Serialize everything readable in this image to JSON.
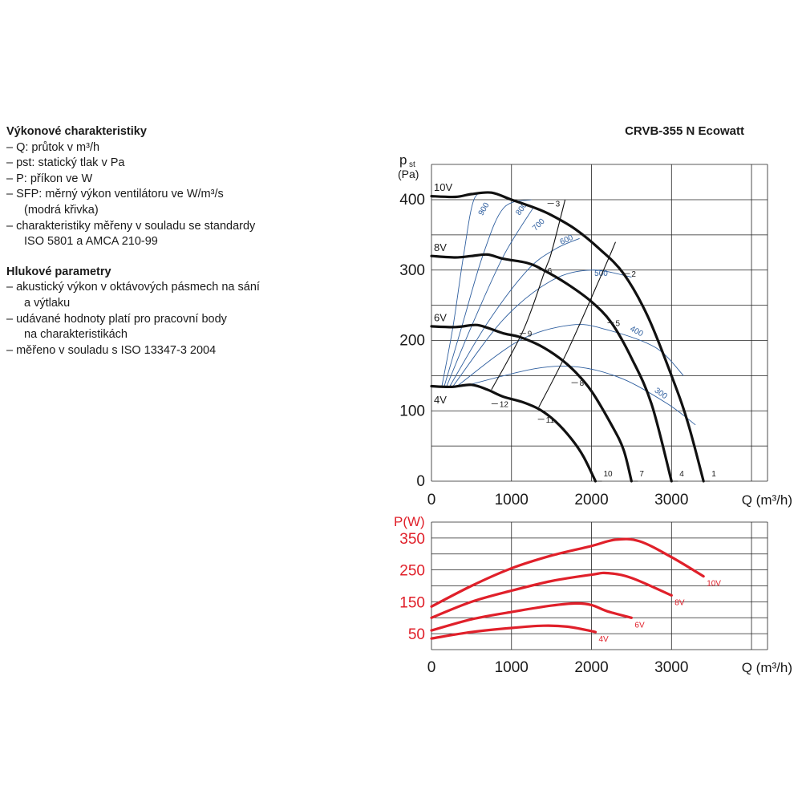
{
  "legend": {
    "performance_title": "Výkonové charakteristiky",
    "performance_items": [
      "– Q: průtok v m³/h",
      "– pst: statický tlak v Pa",
      "– P: příkon ve W",
      "– SFP: měrný výkon ventilátoru ve W/m³/s",
      "(modrá křivka)",
      "– charakteristiky měřeny v souladu se standardy",
      "ISO 5801 a AMCA 210-99"
    ],
    "noise_title": "Hlukové parametry",
    "noise_items": [
      "– akustický výkon v oktávových pásmech na sání",
      "a výtlaku",
      "– udávané hodnoty platí pro pracovní body",
      "na charakteristikách",
      "– měřeno v souladu s ISO 13347-3 2004"
    ]
  },
  "chart_data": [
    {
      "type": "line",
      "title": "CRVB-355 N Ecowatt",
      "xlabel": "Q (m³/h)",
      "ylabel_main": "p",
      "ylabel_sub": "st",
      "ylabel_unit": "(Pa)",
      "xlim": [
        0,
        4200
      ],
      "ylim": [
        0,
        400
      ],
      "xticks": [
        0,
        1000,
        2000,
        3000
      ],
      "yticks": [
        0,
        100,
        200,
        300,
        400
      ],
      "grid": true,
      "colors": {
        "fan": "#111111",
        "sfp": "#2f5f9f",
        "system": "#111111"
      },
      "series": [
        {
          "name": "10V",
          "points": [
            [
              0,
              405
            ],
            [
              300,
              404
            ],
            [
              500,
              408
            ],
            [
              750,
              410
            ],
            [
              1000,
              400
            ],
            [
              1300,
              388
            ],
            [
              1500,
              378
            ],
            [
              1800,
              358
            ],
            [
              2100,
              330
            ],
            [
              2400,
              295
            ],
            [
              2700,
              235
            ],
            [
              3000,
              150
            ],
            [
              3200,
              85
            ],
            [
              3400,
              0
            ]
          ]
        },
        {
          "name": "8V",
          "points": [
            [
              0,
              320
            ],
            [
              300,
              318
            ],
            [
              500,
              320
            ],
            [
              700,
              322
            ],
            [
              900,
              316
            ],
            [
              1200,
              310
            ],
            [
              1400,
              300
            ],
            [
              1700,
              280
            ],
            [
              2000,
              255
            ],
            [
              2250,
              225
            ],
            [
              2500,
              175
            ],
            [
              2750,
              110
            ],
            [
              3000,
              0
            ]
          ]
        },
        {
          "name": "6V",
          "points": [
            [
              0,
              220
            ],
            [
              300,
              219
            ],
            [
              550,
              222
            ],
            [
              700,
              218
            ],
            [
              900,
              210
            ],
            [
              1100,
              205
            ],
            [
              1350,
              193
            ],
            [
              1600,
              175
            ],
            [
              1800,
              155
            ],
            [
              2000,
              128
            ],
            [
              2250,
              80
            ],
            [
              2400,
              45
            ],
            [
              2500,
              0
            ]
          ]
        },
        {
          "name": "4V",
          "points": [
            [
              0,
              135
            ],
            [
              250,
              134
            ],
            [
              500,
              137
            ],
            [
              700,
              130
            ],
            [
              900,
              120
            ],
            [
              1150,
              112
            ],
            [
              1350,
              102
            ],
            [
              1550,
              85
            ],
            [
              1750,
              60
            ],
            [
              1900,
              35
            ],
            [
              2050,
              0
            ]
          ]
        }
      ],
      "sfp_curves": [
        {
          "label": "900",
          "points": [
            [
              130,
              135
            ],
            [
              270,
              220
            ],
            [
              400,
              320
            ],
            [
              530,
              400
            ],
            [
              700,
              410
            ]
          ]
        },
        {
          "label": "800",
          "points": [
            [
              160,
              135
            ],
            [
              380,
              220
            ],
            [
              640,
              320
            ],
            [
              900,
              388
            ],
            [
              1250,
              400
            ]
          ]
        },
        {
          "label": "700",
          "points": [
            [
              190,
              135
            ],
            [
              500,
              220
            ],
            [
              900,
              320
            ],
            [
              1280,
              390
            ]
          ]
        },
        {
          "label": "600",
          "points": [
            [
              230,
              135
            ],
            [
              700,
              225
            ],
            [
              1200,
              300
            ],
            [
              1550,
              330
            ],
            [
              1850,
              345
            ]
          ]
        },
        {
          "label": "500",
          "points": [
            [
              270,
              135
            ],
            [
              900,
              230
            ],
            [
              1500,
              285
            ],
            [
              2000,
              300
            ],
            [
              2500,
              290
            ]
          ]
        },
        {
          "label": "400",
          "points": [
            [
              320,
              135
            ],
            [
              1100,
              200
            ],
            [
              1750,
              222
            ],
            [
              2200,
              215
            ],
            [
              2800,
              190
            ],
            [
              3150,
              150
            ]
          ]
        },
        {
          "label": "300",
          "points": [
            [
              400,
              135
            ],
            [
              1300,
              160
            ],
            [
              1850,
              162
            ],
            [
              2400,
              145
            ],
            [
              2950,
              110
            ],
            [
              3300,
              80
            ]
          ]
        }
      ],
      "system_curves": [
        {
          "points": [
            [
              750,
              130
            ],
            [
              1150,
              215
            ],
            [
              1420,
              300
            ],
            [
              1500,
              325
            ],
            [
              1670,
              400
            ]
          ]
        },
        {
          "points": [
            [
              1340,
              105
            ],
            [
              1700,
              185
            ],
            [
              2150,
              300
            ],
            [
              2300,
              340
            ]
          ]
        }
      ],
      "sfp_label_positions": [
        {
          "label": "900",
          "x": 680,
          "y": 385,
          "angle": -60
        },
        {
          "label": "800",
          "x": 1150,
          "y": 385,
          "angle": -55
        },
        {
          "label": "700",
          "x": 1360,
          "y": 362,
          "angle": -45
        },
        {
          "label": "600",
          "x": 1700,
          "y": 340,
          "angle": -25
        },
        {
          "label": "500",
          "x": 2120,
          "y": 292,
          "angle": 0
        },
        {
          "label": "400",
          "x": 2550,
          "y": 210,
          "angle": 28
        },
        {
          "label": "300",
          "x": 2850,
          "y": 122,
          "angle": 35
        }
      ],
      "points": [
        {
          "label": "1",
          "x": 3400,
          "y": 0
        },
        {
          "label": "2",
          "x": 2400,
          "y": 295
        },
        {
          "label": "3",
          "x": 1450,
          "y": 395
        },
        {
          "label": "4",
          "x": 3000,
          "y": 0
        },
        {
          "label": "5",
          "x": 2200,
          "y": 225
        },
        {
          "label": "6",
          "x": 1350,
          "y": 300
        },
        {
          "label": "7",
          "x": 2500,
          "y": 0
        },
        {
          "label": "8",
          "x": 1750,
          "y": 140
        },
        {
          "label": "9",
          "x": 1100,
          "y": 210
        },
        {
          "label": "10",
          "x": 2050,
          "y": 0
        },
        {
          "label": "11",
          "x": 1330,
          "y": 88
        },
        {
          "label": "12",
          "x": 750,
          "y": 110
        }
      ],
      "series_labels": [
        {
          "label": "10V",
          "x": 0,
          "y": 418
        },
        {
          "label": "8V",
          "x": 0,
          "y": 333
        },
        {
          "label": "6V",
          "x": 0,
          "y": 233
        },
        {
          "label": "4V",
          "x": 0,
          "y": 116
        }
      ]
    },
    {
      "type": "line",
      "xlabel": "Q (m³/h)",
      "ylabel": "P(W)",
      "xlim": [
        0,
        4200
      ],
      "ylim": [
        0,
        400
      ],
      "xticks": [
        0,
        1000,
        2000,
        3000
      ],
      "yticks": [
        50,
        150,
        250,
        350
      ],
      "grid": true,
      "color": "#e0202a",
      "series": [
        {
          "name": "10V",
          "points": [
            [
              0,
              135
            ],
            [
              500,
              200
            ],
            [
              1000,
              255
            ],
            [
              1500,
              295
            ],
            [
              2000,
              325
            ],
            [
              2300,
              345
            ],
            [
              2600,
              340
            ],
            [
              3000,
              290
            ],
            [
              3400,
              230
            ]
          ]
        },
        {
          "name": "8V",
          "points": [
            [
              0,
              100
            ],
            [
              500,
              150
            ],
            [
              1000,
              185
            ],
            [
              1500,
              215
            ],
            [
              2000,
              235
            ],
            [
              2200,
              240
            ],
            [
              2500,
              225
            ],
            [
              3000,
              170
            ]
          ]
        },
        {
          "name": "6V",
          "points": [
            [
              0,
              60
            ],
            [
              500,
              95
            ],
            [
              1000,
              118
            ],
            [
              1500,
              138
            ],
            [
              1800,
              145
            ],
            [
              2000,
              140
            ],
            [
              2200,
              120
            ],
            [
              2500,
              100
            ]
          ]
        },
        {
          "name": "4V",
          "points": [
            [
              0,
              35
            ],
            [
              500,
              55
            ],
            [
              1000,
              68
            ],
            [
              1400,
              75
            ],
            [
              1700,
              72
            ],
            [
              2000,
              58
            ],
            [
              2050,
              55
            ]
          ]
        }
      ]
    }
  ]
}
